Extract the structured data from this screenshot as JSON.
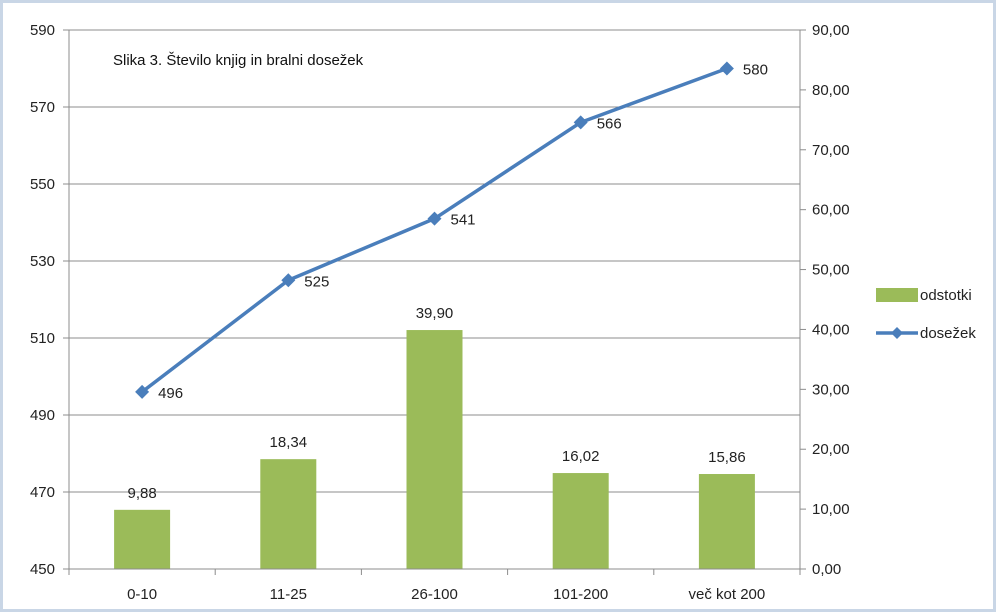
{
  "chart_data": {
    "type": "bar+line",
    "title": "Slika 3. Število knjig in bralni dosežek",
    "categories": [
      "0-10",
      "11-25",
      "26-100",
      "101-200",
      "več kot 200"
    ],
    "series": [
      {
        "name": "odstotki",
        "type": "bar",
        "axis": "right",
        "color": "#9bbb59",
        "values": [
          9.88,
          18.34,
          39.9,
          16.02,
          15.86
        ],
        "value_labels": [
          "9,88",
          "18,34",
          "39,90",
          "16,02",
          "15,86"
        ]
      },
      {
        "name": "dosežek",
        "type": "line",
        "axis": "left",
        "color": "#4a7ebb",
        "marker": "diamond",
        "values": [
          496,
          525,
          541,
          566,
          580
        ],
        "value_labels": [
          "496",
          "525",
          "541",
          "566",
          "580"
        ]
      }
    ],
    "y_left": {
      "min": 450,
      "max": 590,
      "ticks": [
        450,
        470,
        490,
        510,
        530,
        550,
        570,
        590
      ],
      "tick_labels": [
        "450",
        "470",
        "490",
        "510",
        "530",
        "550",
        "570",
        "590"
      ]
    },
    "y_right": {
      "min": 0,
      "max": 90,
      "ticks": [
        0,
        10,
        20,
        30,
        40,
        50,
        60,
        70,
        80,
        90
      ],
      "tick_labels": [
        "0,00",
        "10,00",
        "20,00",
        "30,00",
        "40,00",
        "50,00",
        "60,00",
        "70,00",
        "80,00",
        "90,00"
      ]
    },
    "grid": true,
    "legend_position": "right"
  }
}
